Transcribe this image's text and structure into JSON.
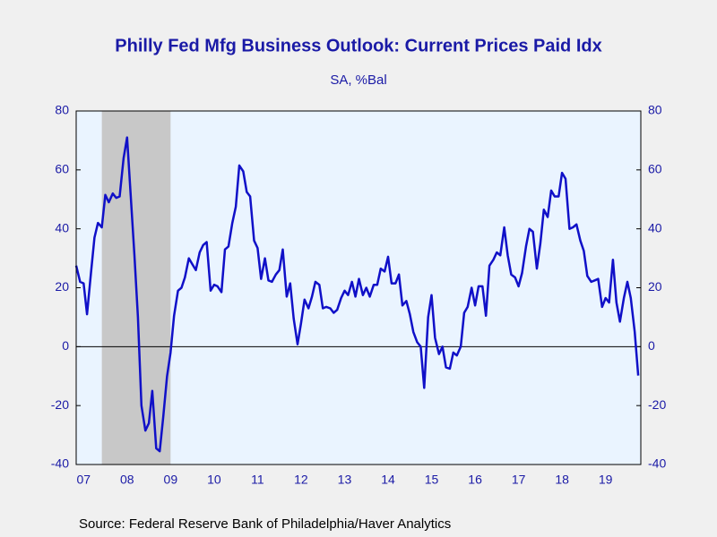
{
  "chart_data": {
    "type": "line",
    "title": "Philly Fed Mfg Business Outlook: Current Prices Paid Idx",
    "subtitle": "SA, %Bal",
    "source": "Source:  Federal Reserve Bank of Philadelphia/Haver Analytics",
    "xlim": [
      2007.33,
      2020.31
    ],
    "ylim": [
      -40,
      80
    ],
    "yticks": [
      -40,
      -20,
      0,
      20,
      40,
      60,
      80
    ],
    "xticks": [
      {
        "value": 2007.5,
        "label": "07"
      },
      {
        "value": 2008.5,
        "label": "08"
      },
      {
        "value": 2009.5,
        "label": "09"
      },
      {
        "value": 2010.5,
        "label": "10"
      },
      {
        "value": 2011.5,
        "label": "11"
      },
      {
        "value": 2012.5,
        "label": "12"
      },
      {
        "value": 2013.5,
        "label": "13"
      },
      {
        "value": 2014.5,
        "label": "14"
      },
      {
        "value": 2015.5,
        "label": "15"
      },
      {
        "value": 2016.5,
        "label": "16"
      },
      {
        "value": 2017.5,
        "label": "17"
      },
      {
        "value": 2018.5,
        "label": "18"
      },
      {
        "value": 2019.5,
        "label": "19"
      }
    ],
    "recession": [
      2007.92,
      2009.5
    ],
    "x": [
      2007.33,
      2007.42,
      2007.5,
      2007.58,
      2007.67,
      2007.75,
      2007.83,
      2007.92,
      2008,
      2008.08,
      2008.17,
      2008.25,
      2008.33,
      2008.42,
      2008.5,
      2008.58,
      2008.67,
      2008.75,
      2008.83,
      2008.92,
      2009,
      2009.08,
      2009.17,
      2009.25,
      2009.33,
      2009.42,
      2009.5,
      2009.58,
      2009.67,
      2009.75,
      2009.83,
      2009.92,
      2010,
      2010.08,
      2010.17,
      2010.25,
      2010.33,
      2010.42,
      2010.5,
      2010.58,
      2010.67,
      2010.75,
      2010.83,
      2010.92,
      2011,
      2011.08,
      2011.17,
      2011.25,
      2011.33,
      2011.42,
      2011.5,
      2011.58,
      2011.67,
      2011.75,
      2011.83,
      2011.92,
      2012,
      2012.08,
      2012.17,
      2012.25,
      2012.33,
      2012.42,
      2012.5,
      2012.58,
      2012.67,
      2012.75,
      2012.83,
      2012.92,
      2013,
      2013.08,
      2013.17,
      2013.25,
      2013.33,
      2013.42,
      2013.5,
      2013.58,
      2013.67,
      2013.75,
      2013.83,
      2013.92,
      2014,
      2014.08,
      2014.17,
      2014.25,
      2014.33,
      2014.42,
      2014.5,
      2014.58,
      2014.67,
      2014.75,
      2014.83,
      2014.92,
      2015,
      2015.08,
      2015.17,
      2015.25,
      2015.33,
      2015.42,
      2015.5,
      2015.58,
      2015.67,
      2015.75,
      2015.83,
      2015.92,
      2016,
      2016.08,
      2016.17,
      2016.25,
      2016.33,
      2016.42,
      2016.5,
      2016.58,
      2016.67,
      2016.75,
      2016.83,
      2016.92,
      2017,
      2017.08,
      2017.17,
      2017.25,
      2017.33,
      2017.42,
      2017.5,
      2017.58,
      2017.67,
      2017.75,
      2017.83,
      2017.92,
      2018,
      2018.08,
      2018.17,
      2018.25,
      2018.33,
      2018.42,
      2018.5,
      2018.58,
      2018.67,
      2018.75,
      2018.83,
      2018.92,
      2019,
      2019.08,
      2019.17,
      2019.25,
      2019.33,
      2019.42,
      2019.5,
      2019.58,
      2019.67,
      2019.75,
      2019.83,
      2019.92,
      2020,
      2020.08,
      2020.17,
      2020.25
    ],
    "series": [
      {
        "color": "#1010c8",
        "values": [
          27.5,
          22,
          21.5,
          11,
          25,
          37,
          42,
          40.5,
          51.5,
          49,
          52,
          50.5,
          51,
          64,
          71,
          52,
          31,
          10,
          -20,
          -28.5,
          -26,
          -15,
          -34.5,
          -35.5,
          -24,
          -10,
          -2,
          10.5,
          19,
          20,
          23.5,
          30,
          28,
          26,
          32,
          34.5,
          35.5,
          19,
          21,
          20.5,
          18.5,
          33,
          34,
          42,
          47.5,
          61.5,
          59.5,
          52.5,
          51,
          36,
          33.5,
          23,
          30,
          22.5,
          22,
          24.5,
          26,
          33,
          17,
          21.5,
          9.5,
          0.8,
          8,
          16,
          13,
          17,
          22,
          21,
          13,
          13.5,
          13,
          11.5,
          12.5,
          16.5,
          19,
          17.5,
          22,
          17,
          23,
          17.5,
          20,
          17,
          21,
          21,
          26.5,
          25.5,
          30.5,
          21.5,
          21.5,
          24.5,
          14,
          15.5,
          11,
          5,
          1.5,
          0,
          -14,
          10,
          17.5,
          3,
          -2.5,
          0,
          -7,
          -7.5,
          -2,
          -3,
          0,
          11.5,
          13.5,
          20,
          14,
          20.5,
          20.5,
          10.5,
          27.5,
          29.5,
          32,
          31,
          40.5,
          31,
          24.5,
          23.5,
          20.5,
          25,
          34,
          40,
          39,
          26.5,
          35,
          46.5,
          44,
          53,
          51,
          51,
          59,
          57,
          40,
          40.5,
          41.5,
          36,
          32.5,
          24,
          22,
          22.5,
          23,
          13.5,
          16.5,
          15,
          29.5,
          15,
          8.5,
          16.5,
          22,
          16.5,
          5,
          -9.8
        ]
      }
    ]
  }
}
